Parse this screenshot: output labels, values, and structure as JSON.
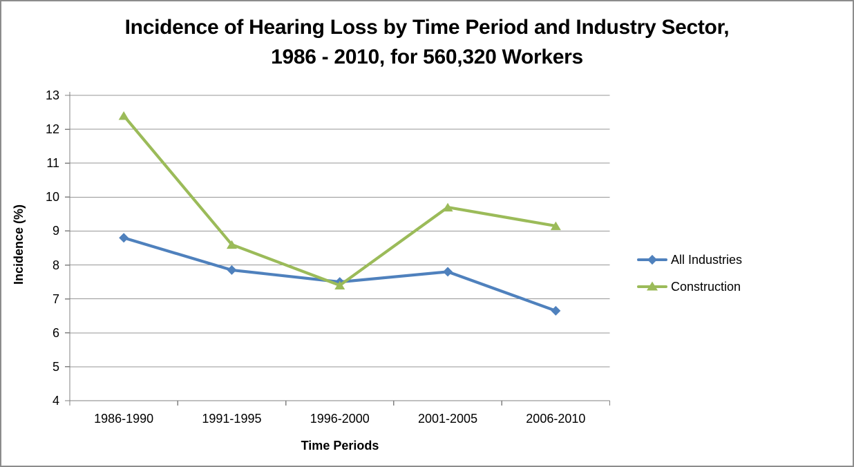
{
  "title": {
    "line1": "Incidence of Hearing Loss by Time Period and Industry Sector,",
    "line2": "1986 - 2010, for 560,320 Workers"
  },
  "chart_data": {
    "type": "line",
    "title": "Incidence of Hearing Loss by Time Period and Industry Sector, 1986 - 2010, for 560,320 Workers",
    "categories": [
      "1986-1990",
      "1991-1995",
      "1996-2000",
      "2001-2005",
      "2006-2010"
    ],
    "series": [
      {
        "name": "All Industries",
        "marker": "diamond",
        "color": "#4F81BD",
        "values": [
          8.8,
          7.85,
          7.5,
          7.8,
          6.65
        ]
      },
      {
        "name": "Construction",
        "marker": "triangle",
        "color": "#9BBB59",
        "values": [
          12.4,
          8.6,
          7.4,
          9.7,
          9.15
        ]
      }
    ],
    "xlabel": "Time Periods",
    "ylabel": "Incidence (%)",
    "ylim": [
      4,
      13
    ],
    "ytick_step": 1,
    "ytick_labels": [
      "13",
      "12",
      "11",
      "10",
      "9",
      "8",
      "7",
      "6",
      "5",
      "4"
    ],
    "grid": "horizontal",
    "legend_position": "right"
  },
  "colors": {
    "all_industries": "#4F81BD",
    "construction": "#9BBB59",
    "gridline": "#969696",
    "axis": "#808080",
    "frame_border": "#8C8C8C",
    "background": "#FFFFFF",
    "text": "#000000"
  }
}
